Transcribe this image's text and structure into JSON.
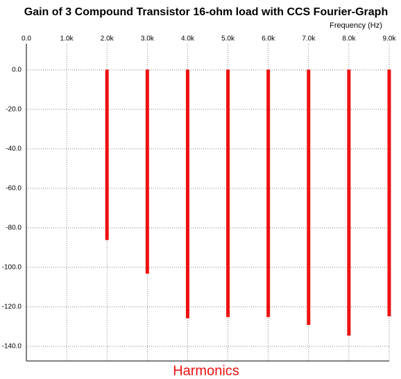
{
  "chart_data": {
    "type": "bar",
    "title": "Gain of 3 Compound Transistor 16-ohm load with CCS Fourier-Graph",
    "x_label": "Frequency (Hz)",
    "bottom_label": "Harmonics",
    "x": [
      1000,
      2000,
      3000,
      4000,
      5000,
      6000,
      7000,
      8000,
      9000
    ],
    "values": [
      0,
      -86,
      -103,
      -125.6,
      -125,
      -125,
      -129,
      -134.4,
      -124.6
    ],
    "color": "#ee1111",
    "xlim": [
      0,
      9000
    ],
    "xticks": [
      {
        "value": 0,
        "label": "0.0"
      },
      {
        "value": 1000,
        "label": "1.0k"
      },
      {
        "value": 2000,
        "label": "2.0k"
      },
      {
        "value": 3000,
        "label": "3.0k"
      },
      {
        "value": 4000,
        "label": "4.0k"
      },
      {
        "value": 5000,
        "label": "5.0k"
      },
      {
        "value": 6000,
        "label": "6.0k"
      },
      {
        "value": 7000,
        "label": "7.0k"
      },
      {
        "value": 8000,
        "label": "8.0k"
      },
      {
        "value": 9000,
        "label": "9.0k"
      }
    ],
    "ylim": [
      -147.4,
      13.3
    ],
    "yticks": [
      {
        "value": 0,
        "label": "0.0"
      },
      {
        "value": -20,
        "label": "-20.0"
      },
      {
        "value": -40,
        "label": "-40.0"
      },
      {
        "value": -60,
        "label": "-60.0"
      },
      {
        "value": -80,
        "label": "-80.0"
      },
      {
        "value": -100,
        "label": "-100.0"
      },
      {
        "value": -120,
        "label": "-120.0"
      },
      {
        "value": -140,
        "label": "-140.0"
      }
    ],
    "grid": true
  }
}
